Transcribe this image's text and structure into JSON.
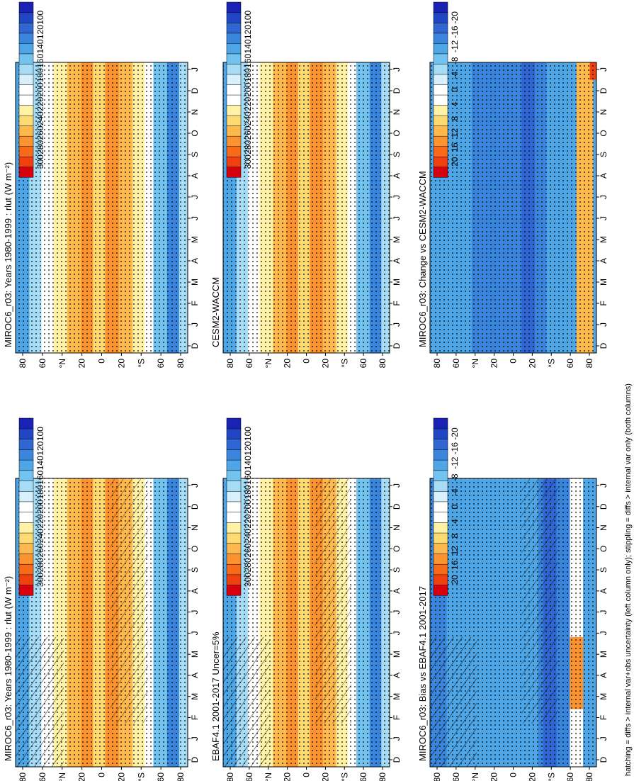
{
  "figure": {
    "footnote": "hatching = diffs > internal var+obs uncertainty (left column only); stippling = diffs > internal var only (both columns)"
  },
  "colorbars": {
    "absolute": {
      "labels": [
        "300",
        "280",
        "260",
        "240",
        "220",
        "200",
        "180",
        "160",
        "140",
        "120",
        "100"
      ],
      "colors": [
        "#d7000e",
        "#f0400f",
        "#f86a18",
        "#fb9330",
        "#fdb84e",
        "#feda72",
        "#fff2a6",
        "#ffffff",
        "#ffffff",
        "#d8f0fb",
        "#a6dcf6",
        "#72c3ef",
        "#4ea6e6",
        "#3a86dc",
        "#2f66d2",
        "#2146c4",
        "#1a22b6"
      ]
    },
    "difference": {
      "labels": [
        "20",
        "16",
        "12",
        "8",
        "4",
        "0",
        "-4",
        "-8",
        "-12",
        "-16",
        "-20"
      ],
      "colors": [
        "#d7000e",
        "#f0400f",
        "#f86a18",
        "#fb9330",
        "#fdb84e",
        "#feda72",
        "#fff2a6",
        "#ffffff",
        "#ffffff",
        "#d8f0fb",
        "#a6dcf6",
        "#72c3ef",
        "#4ea6e6",
        "#3a86dc",
        "#2f66d2",
        "#2146c4",
        "#1a22b6"
      ]
    }
  },
  "chart_data": [
    {
      "type": "heatmap",
      "title": "MIROC6_r03: Years 1980-1999 : rlut (W m⁻²)",
      "x_ticks": [
        "D",
        "J",
        "F",
        "M",
        "A",
        "M",
        "J",
        "J",
        "A",
        "S",
        "O",
        "N",
        "D",
        "J"
      ],
      "y_ticks": [
        "80",
        "60",
        "°N",
        "20",
        "0",
        "20",
        "°S",
        "60",
        "80"
      ],
      "colorbar": "absolute",
      "hatching": true,
      "stippling": true
    },
    {
      "type": "heatmap",
      "title": "MIROC6_r03: Years 1980-1999 : rlut (W m⁻²)",
      "x_ticks": [
        "D",
        "J",
        "F",
        "M",
        "A",
        "M",
        "J",
        "J",
        "A",
        "S",
        "O",
        "N",
        "D",
        "J"
      ],
      "y_ticks": [
        "80",
        "60",
        "°N",
        "20",
        "0",
        "20",
        "°S",
        "60",
        "80"
      ],
      "colorbar": "absolute",
      "hatching": false,
      "stippling": true
    },
    {
      "type": "heatmap",
      "title": "EBAF4.1 2001-2017 Uncer=5%",
      "x_ticks": [
        "D",
        "J",
        "F",
        "M",
        "A",
        "M",
        "J",
        "J",
        "A",
        "S",
        "O",
        "N",
        "D",
        "J"
      ],
      "y_ticks": [
        "80",
        "60",
        "°N",
        "20",
        "0",
        "20",
        "°S",
        "60",
        "80"
      ],
      "colorbar": "absolute",
      "hatching": true,
      "stippling": true
    },
    {
      "type": "heatmap",
      "title": "CESM2-WACCM",
      "x_ticks": [
        "D",
        "J",
        "F",
        "M",
        "A",
        "M",
        "J",
        "J",
        "A",
        "S",
        "O",
        "N",
        "D",
        "J"
      ],
      "y_ticks": [
        "80",
        "60",
        "°N",
        "20",
        "0",
        "20",
        "°S",
        "60",
        "80"
      ],
      "colorbar": "absolute",
      "hatching": false,
      "stippling": true
    },
    {
      "type": "heatmap",
      "title": "MIROC6_r03: Bias vs EBAF4.1 2001-2017",
      "x_ticks": [
        "D",
        "J",
        "F",
        "M",
        "A",
        "M",
        "J",
        "J",
        "A",
        "S",
        "O",
        "N",
        "D",
        "J"
      ],
      "y_ticks": [
        "80",
        "60",
        "°N",
        "20",
        "0",
        "20",
        "°S",
        "60",
        "80"
      ],
      "colorbar": "difference",
      "hatching": true,
      "stippling": true
    },
    {
      "type": "heatmap",
      "title": "MIROC6_r03: Change vs CESM2-WACCM",
      "x_ticks": [
        "D",
        "J",
        "F",
        "M",
        "A",
        "M",
        "J",
        "J",
        "A",
        "S",
        "O",
        "N",
        "D",
        "J"
      ],
      "y_ticks": [
        "80",
        "60",
        "°N",
        "20",
        "0",
        "20",
        "°S",
        "60",
        "80"
      ],
      "colorbar": "difference",
      "hatching": false,
      "stippling": true
    }
  ]
}
